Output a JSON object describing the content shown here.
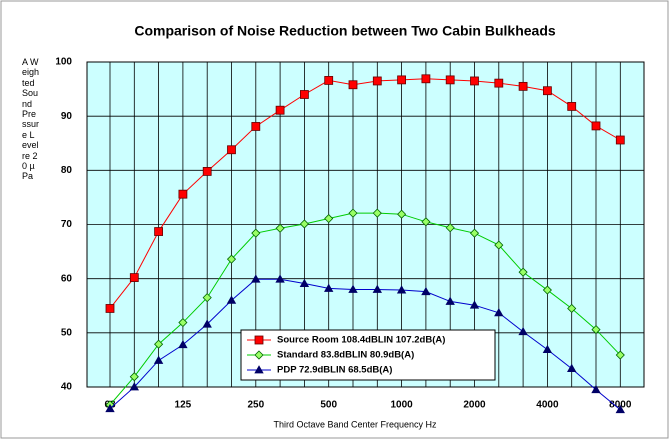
{
  "chart_data": {
    "type": "line",
    "title": "Comparison of Noise Reduction between Two Cabin Bulkheads",
    "x_label": "Third Octave Band Center Frequency Hz",
    "y_label": "A Weighted Sound Pressure Level re 20 µPa",
    "categories": [
      "63",
      null,
      null,
      "125",
      null,
      null,
      "250",
      null,
      null,
      "500",
      null,
      null,
      "1000",
      null,
      null,
      "2000",
      null,
      null,
      "4000",
      null,
      null,
      "8000"
    ],
    "ylim": [
      40,
      100
    ],
    "yticks": [
      40,
      50,
      60,
      70,
      80,
      90,
      100
    ],
    "grid": true,
    "legend_position": "lower center",
    "series": [
      {
        "name": "Source Room 108.4dBLIN 107.2dB(A)",
        "color": "#ff0000",
        "marker": "square",
        "values": [
          54.5,
          60.2,
          68.7,
          75.6,
          79.8,
          83.8,
          88.1,
          91.1,
          94.0,
          96.6,
          95.8,
          96.5,
          96.7,
          96.9,
          96.7,
          96.5,
          96.1,
          95.5,
          94.7,
          91.8,
          88.2,
          85.6
        ]
      },
      {
        "name": "Standard 83.8dBLIN 80.9dB(A)",
        "color": "#00cc00",
        "marker": "diamond",
        "values": [
          36.7,
          41.9,
          47.9,
          51.9,
          56.5,
          63.6,
          68.4,
          69.3,
          70.1,
          71.1,
          72.1,
          72.1,
          71.9,
          70.5,
          69.4,
          68.4,
          66.2,
          61.2,
          57.9,
          54.5,
          50.6,
          45.9
        ]
      },
      {
        "name": "PDP 72.9dBLIN 68.5dB(A)",
        "color": "#0000cc",
        "marker": "triangle",
        "values": [
          36.0,
          40.0,
          44.9,
          47.8,
          51.6,
          56.0,
          59.9,
          59.9,
          59.1,
          58.2,
          58.0,
          58.0,
          57.9,
          57.6,
          55.8,
          55.1,
          53.7,
          50.2,
          46.9,
          43.4,
          39.5,
          35.8
        ]
      }
    ]
  }
}
